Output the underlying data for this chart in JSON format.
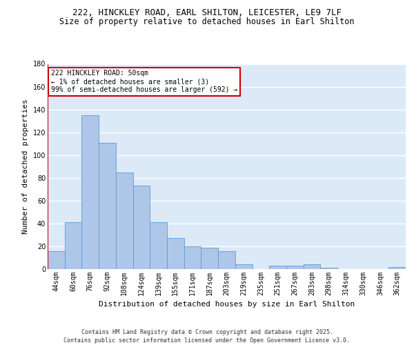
{
  "title_line1": "222, HINCKLEY ROAD, EARL SHILTON, LEICESTER, LE9 7LF",
  "title_line2": "Size of property relative to detached houses in Earl Shilton",
  "xlabel": "Distribution of detached houses by size in Earl Shilton",
  "ylabel": "Number of detached properties",
  "categories": [
    "44sqm",
    "60sqm",
    "76sqm",
    "92sqm",
    "108sqm",
    "124sqm",
    "139sqm",
    "155sqm",
    "171sqm",
    "187sqm",
    "203sqm",
    "219sqm",
    "235sqm",
    "251sqm",
    "267sqm",
    "283sqm",
    "298sqm",
    "314sqm",
    "330sqm",
    "346sqm",
    "362sqm"
  ],
  "values": [
    16,
    41,
    135,
    111,
    85,
    73,
    41,
    27,
    20,
    19,
    16,
    4,
    0,
    3,
    3,
    4,
    1,
    0,
    0,
    0,
    2
  ],
  "bar_color": "#aec6e8",
  "bar_edge_color": "#5b9bd5",
  "highlight_color": "#cc0000",
  "annotation_title": "222 HINCKLEY ROAD: 50sqm",
  "annotation_line1": "← 1% of detached houses are smaller (3)",
  "annotation_line2": "99% of semi-detached houses are larger (592) →",
  "annotation_box_color": "#cc0000",
  "ylim": [
    0,
    180
  ],
  "yticks": [
    0,
    20,
    40,
    60,
    80,
    100,
    120,
    140,
    160,
    180
  ],
  "footer_line1": "Contains HM Land Registry data © Crown copyright and database right 2025.",
  "footer_line2": "Contains public sector information licensed under the Open Government Licence v3.0.",
  "background_color": "#dce9f7",
  "grid_color": "#ffffff",
  "title_fontsize": 9,
  "subtitle_fontsize": 8.5,
  "axis_label_fontsize": 8,
  "tick_fontsize": 7,
  "annotation_fontsize": 7,
  "footer_fontsize": 6
}
